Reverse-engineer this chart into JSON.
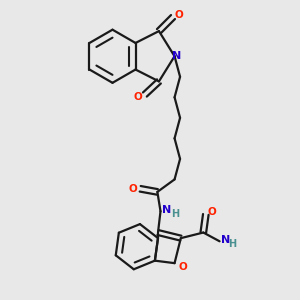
{
  "background_color": "#e8e8e8",
  "bond_color": "#1a1a1a",
  "atom_colors": {
    "O": "#ff2200",
    "N": "#2200cc",
    "H": "#4a9090",
    "C": "#1a1a1a"
  },
  "figsize": [
    3.0,
    3.0
  ],
  "dpi": 100
}
